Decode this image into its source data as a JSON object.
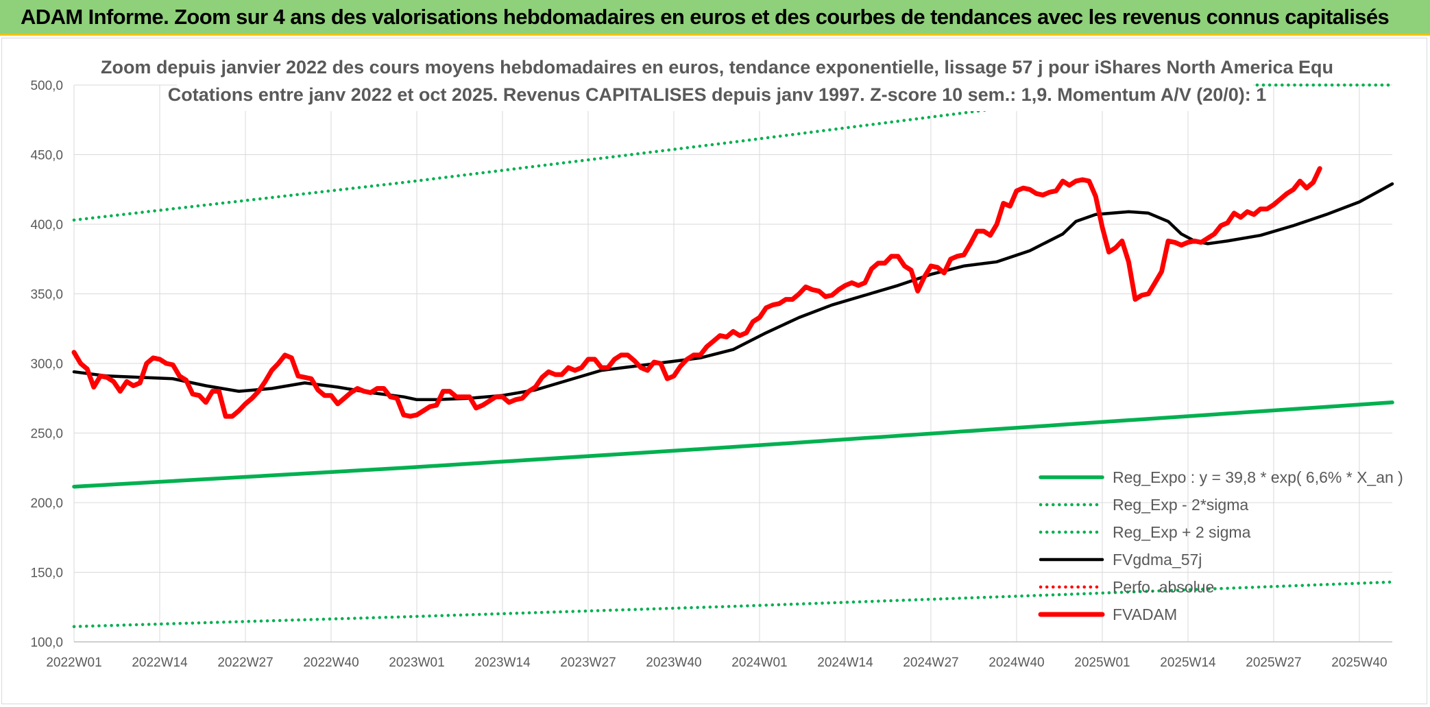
{
  "banner": {
    "title": "ADAM Informe. Zoom sur 4 ans des valorisations hebdomadaires en euros et des courbes de tendances avec les revenus connus capitalisés"
  },
  "chart_data": {
    "type": "line",
    "subtitle_line1": "Zoom depuis janvier 2022 des cours moyens hebdomadaires en euros, tendance exponentielle, lissage 57 j pour iShares North America Equ",
    "subtitle_line2": "Cotations entre janv 2022 et oct 2025. Revenus CAPITALISES depuis janv 1997. Z-score 10 sem.: 1,9. Momentum A/V (20/0): 1",
    "ylim": [
      100,
      500
    ],
    "y_ticks": [
      "100,0",
      "150,0",
      "200,0",
      "250,0",
      "300,0",
      "350,0",
      "400,0",
      "450,0",
      "500,0"
    ],
    "x_ticks": [
      "2022W01",
      "2022W14",
      "2022W27",
      "2022W40",
      "2023W01",
      "2023W14",
      "2023W27",
      "2023W40",
      "2024W01",
      "2024W14",
      "2024W27",
      "2024W40",
      "2025W01",
      "2025W14",
      "2025W27",
      "2025W40"
    ],
    "x_tick_weeks": [
      0,
      13,
      26,
      39,
      52,
      65,
      78,
      91,
      104,
      117,
      130,
      143,
      156,
      169,
      182,
      195
    ],
    "last_week_index": 200,
    "grid": true,
    "legend_placement": "bottom-right",
    "series": [
      {
        "name": "Reg_Expo : y = 39,8 * exp( 6,6% *  X_an )",
        "style": "solid-thick",
        "color": "#00b050",
        "points": [
          [
            0,
            211.5
          ],
          [
            50,
            225
          ],
          [
            100,
            240
          ],
          [
            150,
            256
          ],
          [
            200,
            272
          ]
        ]
      },
      {
        "name": "Reg_Exp - 2*sigma",
        "style": "dotted",
        "color": "#00b050",
        "points": [
          [
            0,
            111
          ],
          [
            50,
            118
          ],
          [
            100,
            125.5
          ],
          [
            150,
            134
          ],
          [
            200,
            143
          ]
        ]
      },
      {
        "name": "Reg_Exp + 2 sigma",
        "style": "dotted",
        "color": "#00b050",
        "points": [
          [
            0,
            403
          ],
          [
            50,
            430
          ],
          [
            100,
            459
          ],
          [
            140,
            483
          ],
          [
            150,
            490
          ],
          [
            165,
            500
          ],
          [
            200,
            500
          ]
        ]
      },
      {
        "name": "FVgdma_57j",
        "style": "solid",
        "color": "#000000",
        "points": [
          [
            0,
            294
          ],
          [
            5,
            291
          ],
          [
            10,
            290
          ],
          [
            15,
            289
          ],
          [
            20,
            284
          ],
          [
            25,
            280
          ],
          [
            30,
            282
          ],
          [
            35,
            286
          ],
          [
            40,
            283
          ],
          [
            45,
            279
          ],
          [
            50,
            276
          ],
          [
            52,
            274
          ],
          [
            55,
            274
          ],
          [
            60,
            275
          ],
          [
            65,
            277
          ],
          [
            70,
            281
          ],
          [
            75,
            288
          ],
          [
            80,
            295
          ],
          [
            85,
            298
          ],
          [
            90,
            301
          ],
          [
            95,
            304
          ],
          [
            100,
            310
          ],
          [
            105,
            322
          ],
          [
            110,
            333
          ],
          [
            115,
            342
          ],
          [
            120,
            349
          ],
          [
            125,
            356
          ],
          [
            130,
            364
          ],
          [
            135,
            370
          ],
          [
            140,
            373
          ],
          [
            145,
            381
          ],
          [
            150,
            393
          ],
          [
            152,
            402
          ],
          [
            155,
            407
          ],
          [
            160,
            409
          ],
          [
            163,
            408
          ],
          [
            166,
            402
          ],
          [
            168,
            393
          ],
          [
            170,
            388
          ],
          [
            172,
            386
          ],
          [
            175,
            388
          ],
          [
            180,
            392
          ],
          [
            185,
            399
          ],
          [
            190,
            407
          ],
          [
            195,
            416
          ],
          [
            200,
            429
          ]
        ]
      },
      {
        "name": "Perfo. absolue",
        "style": "dotted",
        "color": "#ff0000",
        "points": []
      },
      {
        "name": "FVADAM",
        "style": "solid-thick",
        "color": "#ff0000",
        "points": [
          [
            0,
            308
          ],
          [
            1,
            300
          ],
          [
            2,
            296
          ],
          [
            3,
            283
          ],
          [
            4,
            291
          ],
          [
            5,
            290
          ],
          [
            6,
            287
          ],
          [
            7,
            280
          ],
          [
            8,
            287
          ],
          [
            9,
            284
          ],
          [
            10,
            286
          ],
          [
            11,
            300
          ],
          [
            12,
            304
          ],
          [
            13,
            303
          ],
          [
            14,
            300
          ],
          [
            15,
            299
          ],
          [
            16,
            291
          ],
          [
            17,
            288
          ],
          [
            18,
            278
          ],
          [
            19,
            277
          ],
          [
            20,
            272
          ],
          [
            21,
            280
          ],
          [
            22,
            280
          ],
          [
            23,
            262
          ],
          [
            24,
            262
          ],
          [
            25,
            266
          ],
          [
            26,
            271
          ],
          [
            27,
            275
          ],
          [
            28,
            280
          ],
          [
            29,
            287
          ],
          [
            30,
            295
          ],
          [
            31,
            300
          ],
          [
            32,
            306
          ],
          [
            33,
            304
          ],
          [
            34,
            291
          ],
          [
            35,
            290
          ],
          [
            36,
            289
          ],
          [
            37,
            281
          ],
          [
            38,
            277
          ],
          [
            39,
            277
          ],
          [
            40,
            271
          ],
          [
            41,
            275
          ],
          [
            42,
            279
          ],
          [
            43,
            282
          ],
          [
            44,
            280
          ],
          [
            45,
            279
          ],
          [
            46,
            282
          ],
          [
            47,
            282
          ],
          [
            48,
            276
          ],
          [
            49,
            275
          ],
          [
            50,
            263
          ],
          [
            51,
            262
          ],
          [
            52,
            263
          ],
          [
            53,
            266
          ],
          [
            54,
            269
          ],
          [
            55,
            270
          ],
          [
            56,
            280
          ],
          [
            57,
            280
          ],
          [
            58,
            276
          ],
          [
            59,
            276
          ],
          [
            60,
            276
          ],
          [
            61,
            268
          ],
          [
            62,
            270
          ],
          [
            63,
            273
          ],
          [
            64,
            276
          ],
          [
            65,
            276
          ],
          [
            66,
            272
          ],
          [
            67,
            274
          ],
          [
            68,
            275
          ],
          [
            69,
            280
          ],
          [
            70,
            283
          ],
          [
            71,
            290
          ],
          [
            72,
            294
          ],
          [
            73,
            292
          ],
          [
            74,
            292
          ],
          [
            75,
            297
          ],
          [
            76,
            295
          ],
          [
            77,
            297
          ],
          [
            78,
            303
          ],
          [
            79,
            303
          ],
          [
            80,
            297
          ],
          [
            81,
            297
          ],
          [
            82,
            303
          ],
          [
            83,
            306
          ],
          [
            84,
            306
          ],
          [
            85,
            302
          ],
          [
            86,
            297
          ],
          [
            87,
            295
          ],
          [
            88,
            301
          ],
          [
            89,
            300
          ],
          [
            90,
            289
          ],
          [
            91,
            291
          ],
          [
            92,
            298
          ],
          [
            93,
            303
          ],
          [
            94,
            306
          ],
          [
            95,
            306
          ],
          [
            96,
            312
          ],
          [
            97,
            316
          ],
          [
            98,
            320
          ],
          [
            99,
            319
          ],
          [
            100,
            323
          ],
          [
            101,
            320
          ],
          [
            102,
            322
          ],
          [
            103,
            330
          ],
          [
            104,
            333
          ],
          [
            105,
            340
          ],
          [
            106,
            342
          ],
          [
            107,
            343
          ],
          [
            108,
            346
          ],
          [
            109,
            346
          ],
          [
            110,
            350
          ],
          [
            111,
            355
          ],
          [
            112,
            353
          ],
          [
            113,
            352
          ],
          [
            114,
            348
          ],
          [
            115,
            349
          ],
          [
            116,
            353
          ],
          [
            117,
            356
          ],
          [
            118,
            358
          ],
          [
            119,
            356
          ],
          [
            120,
            358
          ],
          [
            121,
            368
          ],
          [
            122,
            372
          ],
          [
            123,
            372
          ],
          [
            124,
            377
          ],
          [
            125,
            377
          ],
          [
            126,
            370
          ],
          [
            127,
            367
          ],
          [
            128,
            352
          ],
          [
            129,
            362
          ],
          [
            130,
            370
          ],
          [
            131,
            369
          ],
          [
            132,
            365
          ],
          [
            133,
            375
          ],
          [
            134,
            377
          ],
          [
            135,
            378
          ],
          [
            136,
            386
          ],
          [
            137,
            395
          ],
          [
            138,
            395
          ],
          [
            139,
            392
          ],
          [
            140,
            400
          ],
          [
            141,
            415
          ],
          [
            142,
            413
          ],
          [
            143,
            424
          ],
          [
            144,
            426
          ],
          [
            145,
            425
          ],
          [
            146,
            422
          ],
          [
            147,
            421
          ],
          [
            148,
            423
          ],
          [
            149,
            424
          ],
          [
            150,
            431
          ],
          [
            151,
            428
          ],
          [
            152,
            431
          ],
          [
            153,
            432
          ],
          [
            154,
            431
          ],
          [
            155,
            420
          ],
          [
            156,
            398
          ],
          [
            157,
            380
          ],
          [
            158,
            383
          ],
          [
            159,
            388
          ],
          [
            160,
            373
          ],
          [
            161,
            346
          ],
          [
            162,
            349
          ],
          [
            163,
            350
          ],
          [
            164,
            358
          ],
          [
            165,
            366
          ],
          [
            166,
            388
          ],
          [
            167,
            387
          ],
          [
            168,
            385
          ],
          [
            169,
            387
          ],
          [
            170,
            388
          ],
          [
            171,
            387
          ],
          [
            172,
            390
          ],
          [
            173,
            393
          ],
          [
            174,
            399
          ],
          [
            175,
            401
          ],
          [
            176,
            408
          ],
          [
            177,
            405
          ],
          [
            178,
            409
          ],
          [
            179,
            407
          ],
          [
            180,
            411
          ],
          [
            181,
            411
          ],
          [
            182,
            414
          ],
          [
            183,
            418
          ],
          [
            184,
            422
          ],
          [
            185,
            425
          ],
          [
            186,
            431
          ],
          [
            187,
            426
          ],
          [
            188,
            430
          ],
          [
            189,
            440
          ]
        ]
      }
    ]
  }
}
